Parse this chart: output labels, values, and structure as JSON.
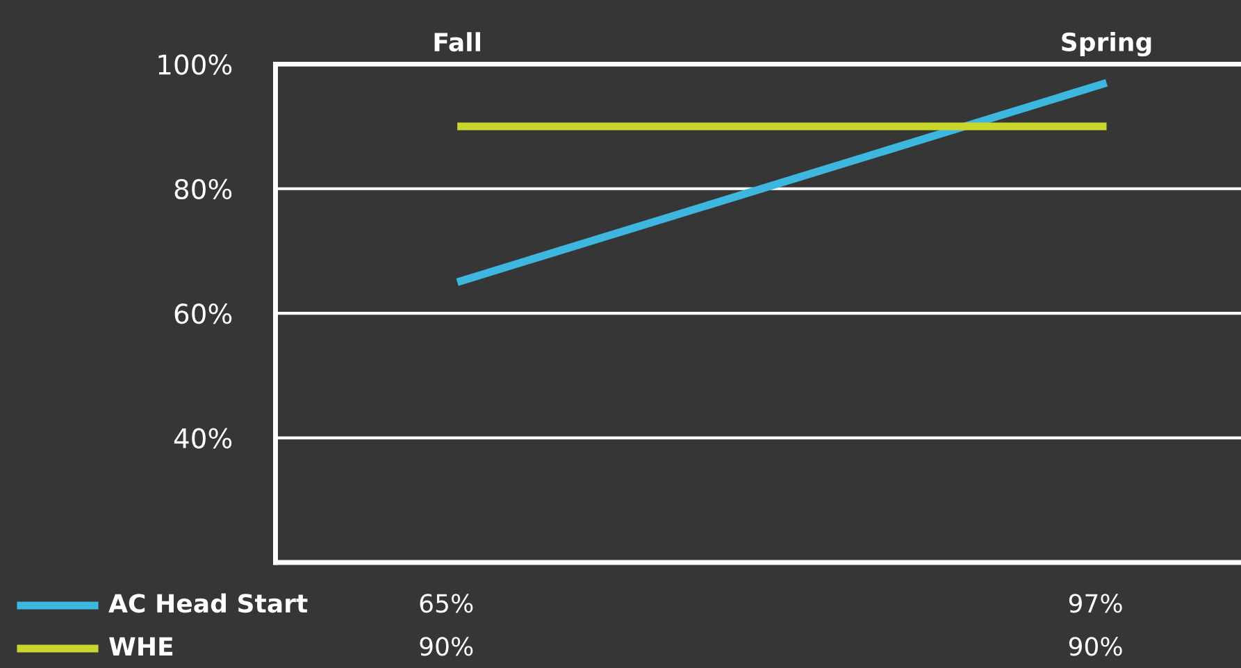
{
  "chart_data": {
    "type": "line",
    "categories": [
      "Fall",
      "Spring"
    ],
    "series": [
      {
        "name": "AC Head Start",
        "color": "#3db6e0",
        "values": [
          65,
          97
        ],
        "value_labels": [
          "65%",
          "97%"
        ]
      },
      {
        "name": "WHE",
        "color": "#c9d62c",
        "values": [
          90,
          90
        ],
        "value_labels": [
          "90%",
          "90%"
        ]
      }
    ],
    "ylim": [
      20,
      100
    ],
    "yticks": [
      {
        "value": 40,
        "label": "40%"
      },
      {
        "value": 60,
        "label": "60%"
      },
      {
        "value": 80,
        "label": "80%"
      },
      {
        "value": 100,
        "label": "100%"
      }
    ],
    "grid": "y",
    "legend": "bottom left",
    "marker": "none",
    "line_style": "solid"
  }
}
